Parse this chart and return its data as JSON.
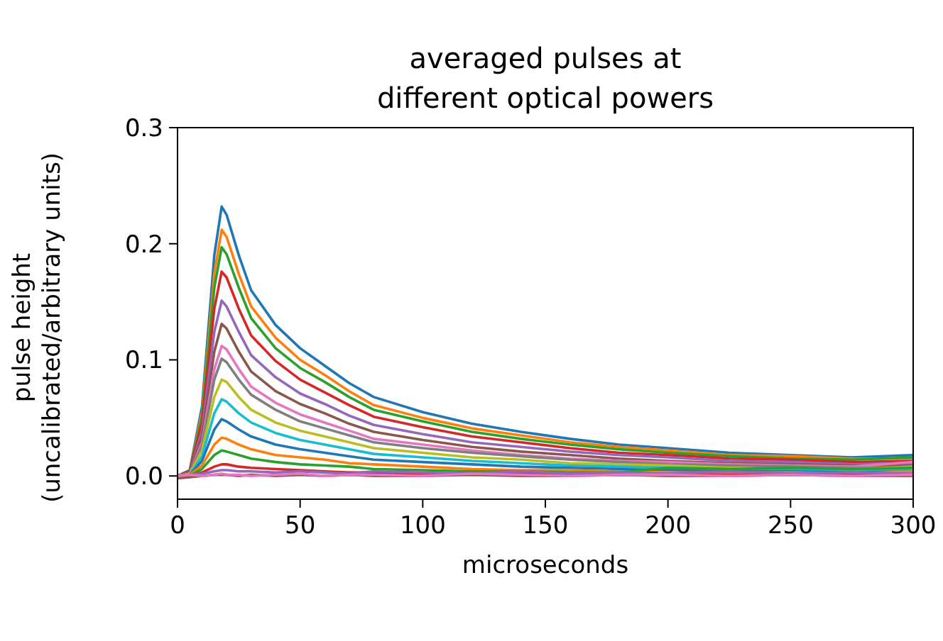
{
  "chart_data": {
    "type": "line",
    "title": "averaged pulses at\ndifferent optical powers",
    "xlabel": "microseconds",
    "ylabel": "pulse height\n(uncalibrated/arbitrary units)",
    "x": [
      0,
      5,
      10,
      15,
      18,
      20,
      25,
      30,
      40,
      50,
      60,
      70,
      80,
      100,
      120,
      140,
      160,
      180,
      200,
      225,
      250,
      275,
      300
    ],
    "xlim": [
      0,
      300
    ],
    "xticks": [
      0,
      50,
      100,
      150,
      200,
      250,
      300
    ],
    "ylim": [
      -0.02,
      0.3
    ],
    "yticks": [
      {
        "value": 0,
        "label": "0.0"
      },
      0.1,
      0.2,
      0.3
    ],
    "grid": false,
    "line_style": "solid",
    "marker": "none",
    "series": [
      {
        "color": "#1f77b4",
        "values": [
          0,
          0.005,
          0.06,
          0.19,
          0.232,
          0.225,
          0.19,
          0.16,
          0.13,
          0.11,
          0.095,
          0.08,
          0.068,
          0.055,
          0.045,
          0.038,
          0.032,
          0.027,
          0.024,
          0.02,
          0.018,
          0.016,
          0.018
        ]
      },
      {
        "color": "#ff7f0e",
        "values": [
          0,
          0.004,
          0.055,
          0.174,
          0.212,
          0.206,
          0.174,
          0.146,
          0.119,
          0.1,
          0.087,
          0.073,
          0.061,
          0.05,
          0.041,
          0.035,
          0.029,
          0.025,
          0.022,
          0.018,
          0.017,
          0.015,
          0.015
        ]
      },
      {
        "color": "#2ca02c",
        "values": [
          0,
          0.004,
          0.051,
          0.162,
          0.197,
          0.191,
          0.162,
          0.136,
          0.11,
          0.093,
          0.081,
          0.068,
          0.057,
          0.047,
          0.038,
          0.032,
          0.027,
          0.023,
          0.02,
          0.017,
          0.015,
          0.014,
          0.016
        ]
      },
      {
        "color": "#d62728",
        "values": [
          0,
          0.004,
          0.046,
          0.144,
          0.176,
          0.171,
          0.144,
          0.121,
          0.099,
          0.083,
          0.072,
          0.061,
          0.051,
          0.042,
          0.034,
          0.029,
          0.024,
          0.02,
          0.018,
          0.015,
          0.014,
          0.012,
          0.013
        ]
      },
      {
        "color": "#9467bd",
        "values": [
          0,
          0.003,
          0.039,
          0.124,
          0.151,
          0.146,
          0.124,
          0.104,
          0.085,
          0.071,
          0.062,
          0.052,
          0.044,
          0.036,
          0.029,
          0.025,
          0.021,
          0.018,
          0.016,
          0.013,
          0.012,
          0.01,
          0.011
        ]
      },
      {
        "color": "#8c564b",
        "values": [
          0,
          0.003,
          0.034,
          0.107,
          0.131,
          0.127,
          0.107,
          0.09,
          0.073,
          0.062,
          0.054,
          0.045,
          0.038,
          0.031,
          0.025,
          0.021,
          0.018,
          0.015,
          0.013,
          0.011,
          0.01,
          0.009,
          0.009
        ]
      },
      {
        "color": "#e377c2",
        "values": [
          0,
          0.002,
          0.029,
          0.092,
          0.112,
          0.109,
          0.092,
          0.077,
          0.063,
          0.053,
          0.046,
          0.039,
          0.032,
          0.027,
          0.022,
          0.018,
          0.015,
          0.013,
          0.012,
          0.01,
          0.009,
          0.008,
          0.012
        ]
      },
      {
        "color": "#7f7f7f",
        "values": [
          0,
          0.002,
          0.026,
          0.083,
          0.101,
          0.098,
          0.083,
          0.07,
          0.057,
          0.047,
          0.041,
          0.035,
          0.029,
          0.024,
          0.02,
          0.017,
          0.014,
          0.012,
          0.01,
          0.009,
          0.008,
          0.007,
          0.007
        ]
      },
      {
        "color": "#bcbd22",
        "values": [
          0,
          0.002,
          0.022,
          0.068,
          0.083,
          0.081,
          0.068,
          0.057,
          0.046,
          0.039,
          0.034,
          0.029,
          0.024,
          0.02,
          0.016,
          0.014,
          0.011,
          0.01,
          0.009,
          0.007,
          0.006,
          0.006,
          0.008
        ]
      },
      {
        "color": "#17becf",
        "values": [
          0,
          0.001,
          0.017,
          0.054,
          0.066,
          0.064,
          0.054,
          0.046,
          0.037,
          0.031,
          0.027,
          0.023,
          0.019,
          0.016,
          0.013,
          0.011,
          0.009,
          0.008,
          0.007,
          0.006,
          0.005,
          0.005,
          0.006
        ]
      },
      {
        "color": "#1f77b4",
        "values": [
          0,
          0.001,
          0.013,
          0.04,
          0.049,
          0.047,
          0.04,
          0.034,
          0.027,
          0.023,
          0.02,
          0.017,
          0.014,
          0.012,
          0.01,
          0.008,
          0.007,
          0.006,
          0.005,
          0.004,
          0.004,
          0.003,
          0.004
        ]
      },
      {
        "color": "#ff7f0e",
        "values": [
          0,
          0.001,
          0.009,
          0.027,
          0.033,
          0.032,
          0.027,
          0.023,
          0.018,
          0.016,
          0.014,
          0.011,
          0.01,
          0.008,
          0.006,
          0.005,
          0.005,
          0.004,
          0.003,
          0.003,
          0.003,
          0.002,
          0.004
        ]
      },
      {
        "color": "#2ca02c",
        "values": [
          0,
          0,
          0.006,
          0.018,
          0.022,
          0.021,
          0.018,
          0.015,
          0.012,
          0.01,
          0.009,
          0.008,
          0.006,
          0.005,
          0.004,
          0.004,
          0.003,
          0.003,
          0.007,
          0.006,
          0.007,
          0.006,
          0.007
        ]
      },
      {
        "color": "#d62728",
        "values": [
          0,
          0,
          0.003,
          0.008,
          0.01,
          0.01,
          0.008,
          0.007,
          0.006,
          0.005,
          0.004,
          0.003,
          0.003,
          0.002,
          0.002,
          0.002,
          0.001,
          0.001,
          0.001,
          0.001,
          0.001,
          0.001,
          0.001
        ]
      },
      {
        "color": "#9467bd",
        "values": [
          0,
          0.001,
          0.002,
          0.004,
          0.005,
          0.005,
          0.004,
          0.004,
          0.003,
          0.004,
          0.003,
          0.002,
          0.004,
          0.003,
          0.002,
          0.004,
          0.002,
          0.003,
          0.002,
          0.004,
          0.002,
          0.003,
          0.002
        ]
      },
      {
        "color": "#8c564b",
        "values": [
          -0.002,
          -0.001,
          0,
          0.001,
          0.001,
          0.001,
          0,
          0.001,
          0,
          0.001,
          0,
          0.001,
          0,
          0,
          0.001,
          0,
          0,
          0.001,
          0,
          0,
          0.001,
          0,
          0
        ]
      },
      {
        "color": "#e377c2",
        "values": [
          0,
          0.001,
          0,
          0.001,
          0.002,
          0.001,
          0.001,
          0,
          0.001,
          0.002,
          0,
          0.001,
          0.001,
          0,
          0.002,
          0.001,
          0,
          0.001,
          0.001,
          0,
          0.001,
          0,
          0.001
        ]
      }
    ]
  }
}
